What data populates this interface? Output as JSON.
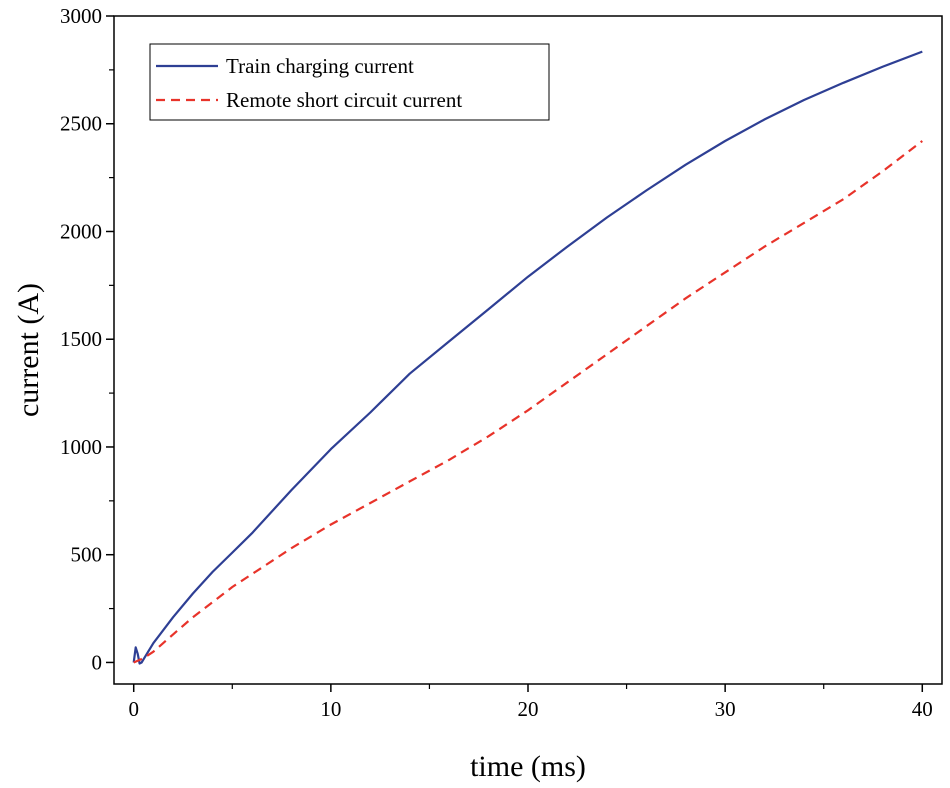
{
  "chart_data": {
    "type": "line",
    "xlabel": "time (ms)",
    "ylabel": "current (A)",
    "xlim": [
      -1,
      41
    ],
    "ylim": [
      -100,
      3000
    ],
    "x_ticks": [
      0,
      10,
      20,
      30,
      40
    ],
    "y_ticks": [
      0,
      500,
      1000,
      1500,
      2000,
      2500,
      3000
    ],
    "x_ticks_minor": [
      5,
      15,
      25,
      35
    ],
    "y_ticks_minor": [
      250,
      750,
      1250,
      1750,
      2250,
      2750
    ],
    "legend_position": "top-left",
    "series": [
      {
        "name": "Train charging current",
        "color": "#2e3f94",
        "dash": "solid",
        "x": [
          0,
          0.1,
          0.2,
          0.3,
          0.4,
          0.5,
          1,
          2,
          3,
          4,
          5,
          6,
          8,
          10,
          12,
          14,
          16,
          18,
          20,
          22,
          24,
          26,
          28,
          30,
          32,
          34,
          36,
          38,
          40
        ],
        "y": [
          0,
          70,
          40,
          -5,
          0,
          15,
          90,
          210,
          320,
          420,
          510,
          600,
          800,
          990,
          1160,
          1340,
          1490,
          1640,
          1790,
          1930,
          2065,
          2190,
          2310,
          2420,
          2520,
          2610,
          2690,
          2765,
          2835
        ]
      },
      {
        "name": "Remote short circuit current",
        "color": "#e8332a",
        "dash": "dashed",
        "x": [
          0,
          0.5,
          1,
          2,
          3,
          4,
          5,
          6,
          8,
          10,
          12,
          14,
          16,
          18,
          20,
          22,
          24,
          26,
          28,
          30,
          32,
          34,
          36,
          38,
          40
        ],
        "y": [
          0,
          20,
          50,
          130,
          210,
          280,
          350,
          410,
          530,
          640,
          740,
          840,
          940,
          1050,
          1170,
          1300,
          1430,
          1560,
          1690,
          1810,
          1930,
          2040,
          2150,
          2280,
          2420
        ]
      }
    ]
  }
}
